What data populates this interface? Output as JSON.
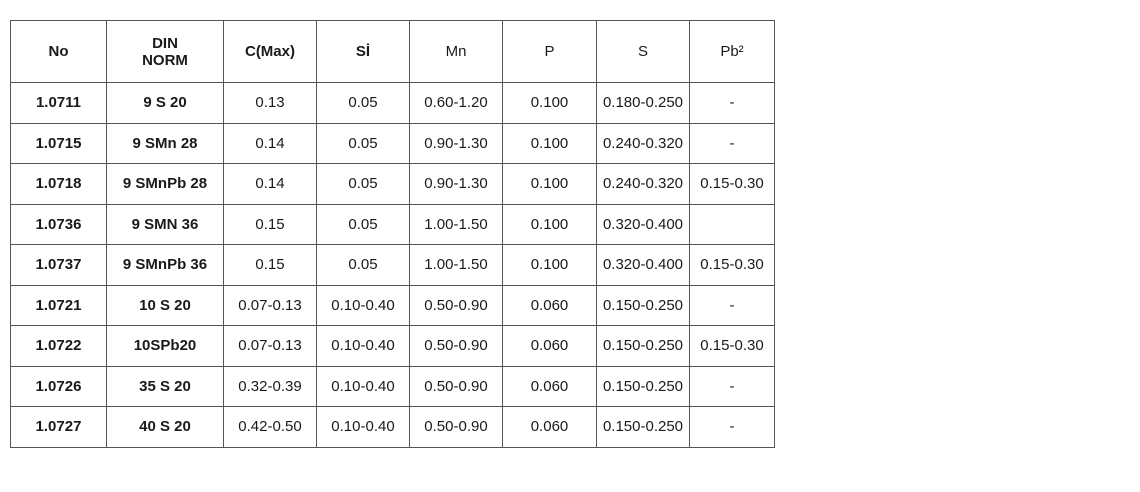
{
  "headers": [
    "No",
    "DIN NORM",
    "C(Max)",
    "Sİ",
    "Mn",
    "P",
    "S",
    "Pb²"
  ],
  "rows": [
    [
      "1.0711",
      "9 S 20",
      "0.13",
      "0.05",
      "0.60-1.20",
      "0.100",
      "0.180-0.250",
      "-"
    ],
    [
      "1.0715",
      "9 SMn 28",
      "0.14",
      "0.05",
      "0.90-1.30",
      "0.100",
      "0.240-0.320",
      "-"
    ],
    [
      "1.0718",
      "9 SMnPb 28",
      "0.14",
      "0.05",
      "0.90-1.30",
      "0.100",
      "0.240-0.320",
      "0.15-0.30"
    ],
    [
      "1.0736",
      "9 SMN 36",
      "0.15",
      "0.05",
      "1.00-1.50",
      "0.100",
      "0.320-0.400",
      ""
    ],
    [
      "1.0737",
      "9 SMnPb 36",
      "0.15",
      "0.05",
      "1.00-1.50",
      "0.100",
      "0.320-0.400",
      "0.15-0.30"
    ],
    [
      "1.0721",
      "10 S 20",
      "0.07-0.13",
      "0.10-0.40",
      "0.50-0.90",
      "0.060",
      "0.150-0.250",
      "-"
    ],
    [
      "1.0722",
      "10SPb20",
      "0.07-0.13",
      "0.10-0.40",
      "0.50-0.90",
      "0.060",
      "0.150-0.250",
      "0.15-0.30"
    ],
    [
      "1.0726",
      "35 S 20",
      "0.32-0.39",
      "0.10-0.40",
      "0.50-0.90",
      "0.060",
      "0.150-0.250",
      "-"
    ],
    [
      "1.0727",
      "40 S 20",
      "0.42-0.50",
      "0.10-0.40",
      "0.50-0.90",
      "0.060",
      "0.150-0.250",
      "-"
    ]
  ]
}
